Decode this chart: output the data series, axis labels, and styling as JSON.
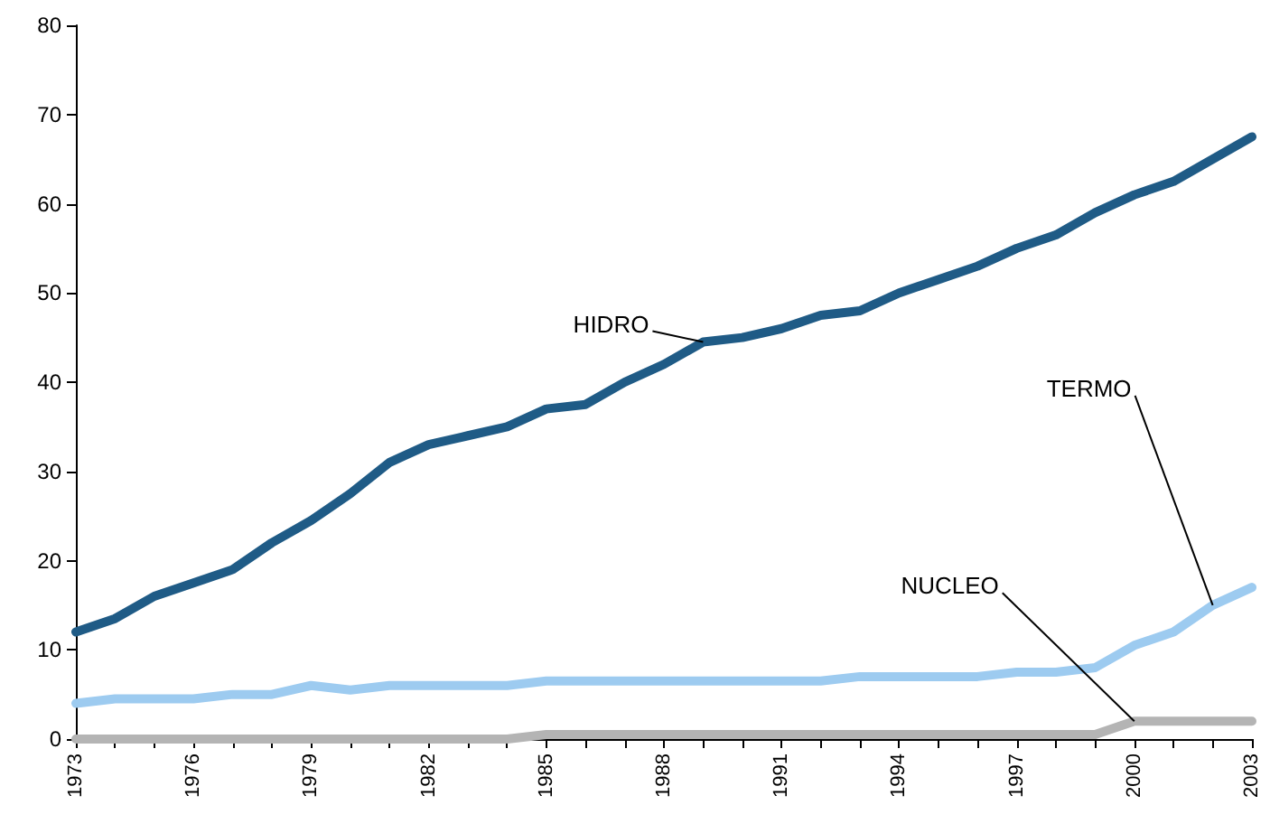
{
  "chart_data": {
    "type": "line",
    "categories": [
      "1973",
      null,
      null,
      "1976",
      null,
      null,
      "1979",
      null,
      null,
      "1982",
      null,
      null,
      "1985",
      null,
      null,
      "1988",
      null,
      null,
      "1991",
      null,
      null,
      "1994",
      null,
      null,
      "1997",
      null,
      null,
      "2000",
      null,
      null,
      "2003"
    ],
    "series": [
      {
        "name": "HIDRO",
        "color": "#1f5b86",
        "values": [
          12,
          13.5,
          16,
          17.5,
          19,
          22,
          24.5,
          27.5,
          31,
          33,
          34,
          35,
          37,
          37.5,
          40,
          42,
          44.5,
          45,
          46,
          47.5,
          48,
          50,
          51.5,
          53,
          55,
          56.5,
          59,
          61,
          62.5,
          65,
          67.5
        ]
      },
      {
        "name": "TERMO",
        "color": "#9dcbf0",
        "values": [
          4,
          4.5,
          4.5,
          4.5,
          5,
          5,
          6,
          5.5,
          6,
          6,
          6,
          6,
          6.5,
          6.5,
          6.5,
          6.5,
          6.5,
          6.5,
          6.5,
          6.5,
          7,
          7,
          7,
          7,
          7.5,
          7.5,
          8,
          10.5,
          12,
          15,
          17
        ]
      },
      {
        "name": "NUCLEO",
        "color": "#b4b4b4",
        "values": [
          0,
          0,
          0,
          0,
          0,
          0,
          0,
          0,
          0,
          0,
          0,
          0,
          0.5,
          0.5,
          0.5,
          0.5,
          0.5,
          0.5,
          0.5,
          0.5,
          0.5,
          0.5,
          0.5,
          0.5,
          0.5,
          0.5,
          0.5,
          2,
          2,
          2,
          2
        ]
      }
    ],
    "ylim": [
      0,
      80
    ],
    "yticks": [
      0,
      10,
      20,
      30,
      40,
      50,
      60,
      70,
      80
    ],
    "grid": false,
    "legend": false,
    "marker": "none",
    "line_style": "solid"
  }
}
